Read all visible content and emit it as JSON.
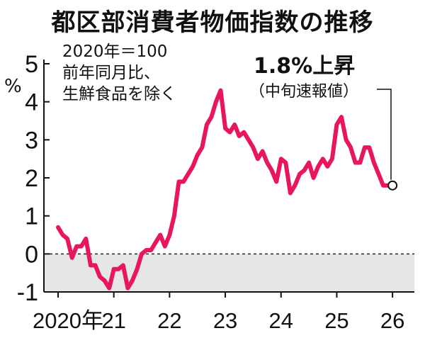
{
  "chart_data": {
    "type": "line",
    "title": "都区部消費者物価指数の推移",
    "unit": "%",
    "annotations": [
      "2020年＝100",
      "前年同月比、",
      "生鮮食品を除く"
    ],
    "callout": {
      "main": "1.8%上昇",
      "sub": "（中旬速報値）"
    },
    "ylim": [
      -1,
      5
    ],
    "yticks": [
      "5",
      "4",
      "3",
      "2",
      "1",
      "0",
      "-1"
    ],
    "xticks": [
      "2020年",
      "21",
      "22",
      "23",
      "24",
      "25",
      "26"
    ],
    "xlim": [
      2020.0,
      2026.1
    ],
    "grid": false,
    "series_color": "#e8175d",
    "series": [
      {
        "x": [
          2020.0,
          2020.083,
          2020.167,
          2020.25,
          2020.333,
          2020.417,
          2020.5,
          2020.583,
          2020.667,
          2020.75,
          2020.833,
          2020.917,
          2021.0,
          2021.083,
          2021.167,
          2021.25,
          2021.333,
          2021.417,
          2021.5,
          2021.583,
          2021.667,
          2021.75,
          2021.833,
          2021.917,
          2022.0,
          2022.083,
          2022.167,
          2022.25,
          2022.333,
          2022.417,
          2022.5,
          2022.583,
          2022.667,
          2022.75,
          2022.833,
          2022.917,
          2023.0,
          2023.083,
          2023.167,
          2023.25,
          2023.333,
          2023.417,
          2023.5,
          2023.583,
          2023.667,
          2023.75,
          2023.833,
          2023.917,
          2024.0,
          2024.083,
          2024.167,
          2024.25,
          2024.333,
          2024.417,
          2024.5,
          2024.583,
          2024.667,
          2024.75,
          2024.833,
          2024.917,
          2025.0,
          2025.083,
          2025.167,
          2025.25,
          2025.333,
          2025.417,
          2025.5,
          2025.583,
          2025.667,
          2025.75,
          2025.833,
          2025.917,
          2026.0
        ],
        "y": [
          0.7,
          0.5,
          0.4,
          -0.1,
          0.2,
          0.2,
          0.4,
          -0.3,
          -0.3,
          -0.6,
          -0.7,
          -0.9,
          -0.4,
          -0.4,
          -0.3,
          -0.9,
          -0.7,
          -0.4,
          0.0,
          0.1,
          0.1,
          0.3,
          0.5,
          0.2,
          0.5,
          1.0,
          1.9,
          1.9,
          2.1,
          2.3,
          2.6,
          2.8,
          3.4,
          3.6,
          4.0,
          4.3,
          3.3,
          3.2,
          3.4,
          3.1,
          3.2,
          3.0,
          2.8,
          2.5,
          2.7,
          2.4,
          2.2,
          1.9,
          2.5,
          2.4,
          1.6,
          1.8,
          2.1,
          2.2,
          2.4,
          2.0,
          2.3,
          2.5,
          2.3,
          2.5,
          3.4,
          3.6,
          3.0,
          2.8,
          2.4,
          2.4,
          2.8,
          2.8,
          2.4,
          2.1,
          1.8,
          1.8,
          1.8
        ]
      }
    ]
  }
}
